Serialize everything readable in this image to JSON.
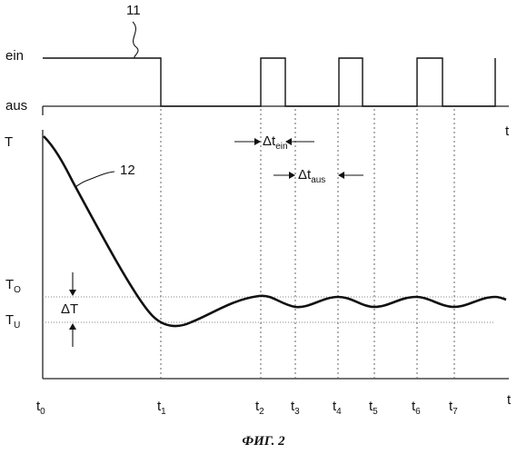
{
  "labels": {
    "ref_signal": "11",
    "ref_curve": "12",
    "ein": "ein",
    "aus": "aus",
    "t_axis_top": "t",
    "t_axis_bottom": "t",
    "T": "T",
    "T_O_main": "T",
    "T_O_sub": "O",
    "T_U_main": "T",
    "T_U_sub": "U",
    "delta_T": "ΔT",
    "delta_t_ein_main": "Δt",
    "delta_t_ein_sub": "ein",
    "delta_t_aus_main": "Δt",
    "delta_t_aus_sub": "aus",
    "caption": "ФИГ. 2"
  },
  "time_ticks": [
    {
      "main": "t",
      "sub": "0"
    },
    {
      "main": "t",
      "sub": "1"
    },
    {
      "main": "t",
      "sub": "2"
    },
    {
      "main": "t",
      "sub": "3"
    },
    {
      "main": "t",
      "sub": "4"
    },
    {
      "main": "t",
      "sub": "5"
    },
    {
      "main": "t",
      "sub": "6"
    },
    {
      "main": "t",
      "sub": "7"
    }
  ]
}
